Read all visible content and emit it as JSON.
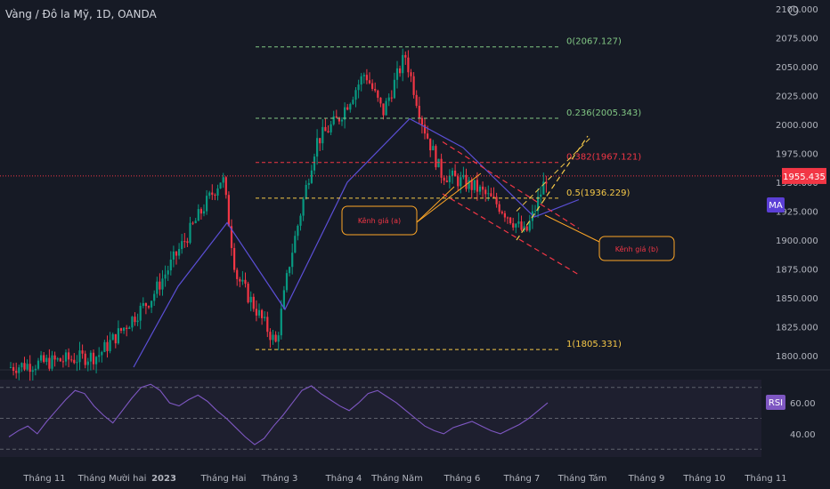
{
  "header": {
    "title": "Vàng / Đô la Mỹ, 1D, OANDA"
  },
  "badges": {
    "ma": "MA",
    "rsi": "RSI",
    "price": "1955.435"
  },
  "colors": {
    "background": "#161a25",
    "up": "#089981",
    "down": "#f23645",
    "ma": "#5b4fd6",
    "rsi": "#7e57c2",
    "fib0": "#81c784",
    "fib382": "#f23645",
    "fib1": "#f7c948",
    "channel_a": "#f23645",
    "channel_b": "#f7c948"
  },
  "chart_data": [
    {
      "type": "candlestick",
      "title": "Vàng / Đô la Mỹ, 1D, OANDA",
      "ylim": [
        1790,
        2100
      ],
      "y_ticks": [
        "2100.000",
        "2075.000",
        "2050.000",
        "2025.000",
        "2000.000",
        "1975.000",
        "1950.000",
        "1925.000",
        "1900.000",
        "1875.000",
        "1850.000",
        "1825.000",
        "1800.000"
      ],
      "x_ticks": [
        "Tháng 11",
        "Tháng Mười hai",
        "2023",
        "Tháng Hai",
        "Tháng 3",
        "Tháng 4",
        "Tháng Năm",
        "Tháng 6",
        "Tháng 7",
        "Tháng Tám",
        "Tháng 9",
        "Tháng 10",
        "Tháng 11"
      ],
      "current_price": 1955.435,
      "price_anchors": [
        [
          "Tháng 11",
          1790
        ],
        [
          "Tháng Mười hai",
          1800
        ],
        [
          "2023",
          1850
        ],
        [
          "Tháng Hai",
          1930
        ],
        [
          "Tháng Hai+",
          1955
        ],
        [
          "Tháng Hai++",
          1870
        ],
        [
          "Tháng 3",
          1810
        ],
        [
          "Tháng 3+",
          1880
        ],
        [
          "Tháng 3++",
          1985
        ],
        [
          "Tháng 4",
          2005
        ],
        [
          "Tháng 4+",
          2045
        ],
        [
          "Tháng Năm",
          2010
        ],
        [
          "Tháng Năm+",
          2060
        ],
        [
          "Tháng Năm++",
          2000
        ],
        [
          "Tháng 6",
          1958
        ],
        [
          "Tháng 6+",
          1945
        ],
        [
          "Tháng 6++",
          1930
        ],
        [
          "Tháng 7",
          1905
        ],
        [
          "Tháng 7+",
          1925
        ],
        [
          "Tháng 7++",
          1958
        ]
      ],
      "moving_average": [
        [
          "Tháng Hai",
          1915
        ],
        [
          "Tháng 3",
          1840
        ],
        [
          "Tháng 4",
          1950
        ],
        [
          "Tháng Năm",
          2005
        ],
        [
          "Tháng 6",
          1980
        ],
        [
          "Tháng 7",
          1920
        ]
      ],
      "fibonacci": [
        {
          "label": "0(2067.127)",
          "value": 2067.127
        },
        {
          "label": "0.236(2005.343)",
          "value": 2005.343
        },
        {
          "label": "0.382(1967.121)",
          "value": 1967.121
        },
        {
          "label": "0.5(1936.229)",
          "value": 1936.229
        },
        {
          "label": "1(1805.331)",
          "value": 1805.331
        }
      ],
      "annotations": [
        {
          "text": "Kênh giá (a)"
        },
        {
          "text": "Kênh giá (b)"
        }
      ]
    },
    {
      "type": "line",
      "series": [
        {
          "name": "RSI"
        }
      ],
      "ylim": [
        25,
        75
      ],
      "y_ticks": [
        "60.00",
        "40.00"
      ],
      "levels": [
        70,
        50,
        30
      ],
      "values": [
        38,
        42,
        45,
        40,
        48,
        55,
        62,
        68,
        66,
        58,
        52,
        47,
        55,
        63,
        70,
        72,
        68,
        60,
        58,
        62,
        65,
        61,
        55,
        50,
        44,
        38,
        33,
        37,
        45,
        52,
        60,
        68,
        71,
        66,
        62,
        58,
        55,
        60,
        66,
        68,
        64,
        60,
        55,
        50,
        45,
        42,
        40,
        44,
        46,
        48,
        45,
        42,
        40,
        43,
        46,
        50,
        55,
        60
      ]
    }
  ]
}
